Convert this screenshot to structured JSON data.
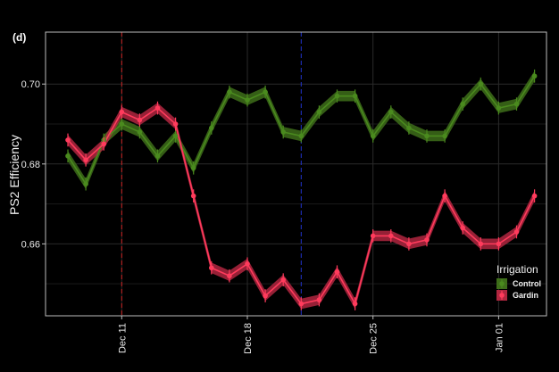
{
  "chart_data": {
    "type": "line",
    "panel_label": "(d)",
    "title": "",
    "xlabel": "",
    "ylabel": "PS2 Efficiency",
    "x": [
      "Dec 08",
      "Dec 09",
      "Dec 10",
      "Dec 11",
      "Dec 12",
      "Dec 13",
      "Dec 14",
      "Dec 15",
      "Dec 16",
      "Dec 17",
      "Dec 18",
      "Dec 19",
      "Dec 20",
      "Dec 21",
      "Dec 22",
      "Dec 23",
      "Dec 24",
      "Dec 25",
      "Dec 26",
      "Dec 27",
      "Dec 28",
      "Dec 29",
      "Dec 30",
      "Dec 31",
      "Jan 01",
      "Jan 02",
      "Jan 03"
    ],
    "x_tick_labels": [
      "Dec 11",
      "Dec 18",
      "Dec 25",
      "Jan 01"
    ],
    "y_tick_labels": [
      "0.66",
      "0.68",
      "0.70"
    ],
    "ylim": [
      0.642,
      0.713
    ],
    "grid": true,
    "vlines": [
      {
        "x": "Dec 11",
        "color": "#cc2222",
        "style": "dashed"
      },
      {
        "x": "Dec 21",
        "color": "#2233cc",
        "style": "dashed"
      }
    ],
    "legend": {
      "title": "Irrigation",
      "position": "bottom-right"
    },
    "series": [
      {
        "name": "Control",
        "color": "#4a8a1e",
        "band_color": "#3e6e1a",
        "values": [
          0.682,
          0.675,
          0.686,
          0.69,
          0.688,
          0.682,
          0.687,
          0.679,
          0.689,
          0.698,
          0.696,
          0.698,
          0.688,
          0.687,
          0.693,
          0.697,
          0.697,
          0.687,
          0.693,
          0.689,
          0.687,
          0.687,
          0.695,
          0.7,
          0.694,
          0.695,
          0.702
        ],
        "se": 0.0013
      },
      {
        "name": "Gardin",
        "color": "#ff3b5c",
        "band_color": "#b0263f",
        "values": [
          0.686,
          0.681,
          0.685,
          0.693,
          0.691,
          0.694,
          0.69,
          0.672,
          0.654,
          0.652,
          0.655,
          0.647,
          0.651,
          0.645,
          0.646,
          0.653,
          0.645,
          0.662,
          0.662,
          0.66,
          0.661,
          0.672,
          0.664,
          0.66,
          0.66,
          0.663,
          0.672
        ],
        "se": 0.0013
      }
    ]
  }
}
